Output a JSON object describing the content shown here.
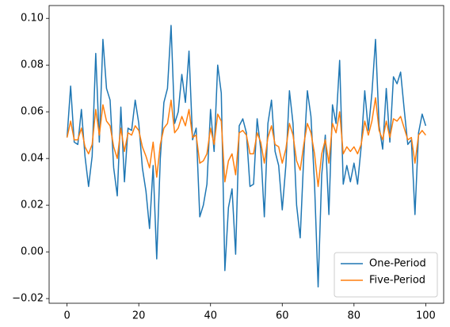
{
  "chart_data": {
    "type": "line",
    "x": [
      0,
      1,
      2,
      3,
      4,
      5,
      6,
      7,
      8,
      9,
      10,
      11,
      12,
      13,
      14,
      15,
      16,
      17,
      18,
      19,
      20,
      21,
      22,
      23,
      24,
      25,
      26,
      27,
      28,
      29,
      30,
      31,
      32,
      33,
      34,
      35,
      36,
      37,
      38,
      39,
      40,
      41,
      42,
      43,
      44,
      45,
      46,
      47,
      48,
      49,
      50,
      51,
      52,
      53,
      54,
      55,
      56,
      57,
      58,
      59,
      60,
      61,
      62,
      63,
      64,
      65,
      66,
      67,
      68,
      69,
      70,
      71,
      72,
      73,
      74,
      75,
      76,
      77,
      78,
      79,
      80,
      81,
      82,
      83,
      84,
      85,
      86,
      87,
      88,
      89,
      90,
      91,
      92,
      93,
      94,
      95,
      96,
      97,
      98,
      99,
      100
    ],
    "series": [
      {
        "name": "One-Period",
        "color": "#1f77b4",
        "values": [
          0.049,
          0.071,
          0.047,
          0.046,
          0.061,
          0.041,
          0.028,
          0.041,
          0.085,
          0.047,
          0.091,
          0.07,
          0.065,
          0.036,
          0.024,
          0.062,
          0.03,
          0.053,
          0.052,
          0.065,
          0.055,
          0.036,
          0.026,
          0.01,
          0.037,
          -0.003,
          0.04,
          0.064,
          0.07,
          0.097,
          0.055,
          0.06,
          0.076,
          0.064,
          0.086,
          0.048,
          0.053,
          0.015,
          0.02,
          0.029,
          0.061,
          0.043,
          0.08,
          0.068,
          -0.008,
          0.019,
          0.027,
          -0.001,
          0.054,
          0.057,
          0.051,
          0.028,
          0.029,
          0.057,
          0.044,
          0.015,
          0.055,
          0.065,
          0.043,
          0.037,
          0.018,
          0.037,
          0.069,
          0.055,
          0.02,
          0.006,
          0.041,
          0.069,
          0.058,
          0.029,
          -0.015,
          0.033,
          0.05,
          0.016,
          0.063,
          0.055,
          0.082,
          0.029,
          0.037,
          0.03,
          0.038,
          0.029,
          0.045,
          0.069,
          0.052,
          0.068,
          0.091,
          0.054,
          0.044,
          0.07,
          0.047,
          0.075,
          0.072,
          0.077,
          0.061,
          0.046,
          0.048,
          0.016,
          0.051,
          0.059,
          0.054
        ]
      },
      {
        "name": "Five-Period",
        "color": "#ff7f0e",
        "values": [
          0.049,
          0.056,
          0.048,
          0.048,
          0.053,
          0.045,
          0.042,
          0.046,
          0.061,
          0.05,
          0.063,
          0.056,
          0.054,
          0.045,
          0.04,
          0.053,
          0.043,
          0.051,
          0.05,
          0.054,
          0.052,
          0.045,
          0.041,
          0.036,
          0.047,
          0.032,
          0.046,
          0.053,
          0.055,
          0.065,
          0.051,
          0.053,
          0.058,
          0.054,
          0.061,
          0.049,
          0.05,
          0.038,
          0.039,
          0.042,
          0.053,
          0.046,
          0.059,
          0.056,
          0.03,
          0.039,
          0.042,
          0.033,
          0.051,
          0.052,
          0.05,
          0.042,
          0.042,
          0.051,
          0.047,
          0.038,
          0.049,
          0.054,
          0.046,
          0.045,
          0.038,
          0.044,
          0.055,
          0.05,
          0.039,
          0.035,
          0.046,
          0.055,
          0.051,
          0.042,
          0.028,
          0.042,
          0.048,
          0.038,
          0.055,
          0.051,
          0.06,
          0.042,
          0.045,
          0.043,
          0.045,
          0.042,
          0.046,
          0.056,
          0.05,
          0.056,
          0.066,
          0.052,
          0.048,
          0.056,
          0.049,
          0.057,
          0.056,
          0.058,
          0.053,
          0.048,
          0.049,
          0.038,
          0.05,
          0.052,
          0.05
        ]
      }
    ],
    "xlim": [
      -5,
      105
    ],
    "ylim": [
      -0.022,
      0.1055
    ],
    "xticks": [
      0,
      20,
      40,
      60,
      80,
      100
    ],
    "yticks": [
      {
        "value": -0.02,
        "label": "−0.02"
      },
      {
        "value": 0,
        "label": "0.00"
      },
      0.02,
      0.04,
      0.06,
      0.08,
      {
        "value": 0.1,
        "label": "0.10"
      }
    ],
    "legend": "lower right"
  }
}
